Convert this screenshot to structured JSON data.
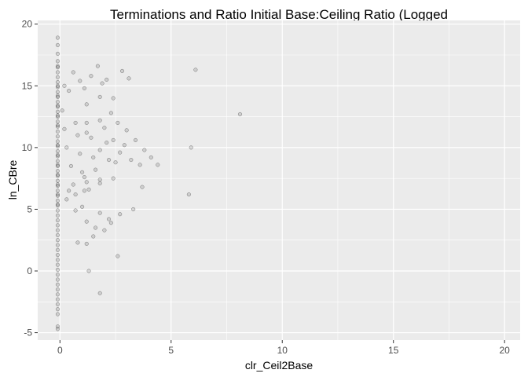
{
  "chart_data": {
    "type": "scatter",
    "title": "Terminations and Ratio Initial Base:Ceiling Ratio (Logged",
    "xlabel": "clr_Ceil2Base",
    "ylabel": "ln_CBre",
    "xlim": [
      -1.0,
      20.7
    ],
    "ylim": [
      -5.6,
      20.3
    ],
    "xticks": [
      0,
      5,
      10,
      15,
      20
    ],
    "xtick_labels": [
      "0",
      "5",
      "10",
      "15",
      "20"
    ],
    "yticks": [
      -5,
      0,
      5,
      10,
      15,
      20
    ],
    "ytick_labels": [
      "-5",
      "0",
      "5",
      "10",
      "15",
      "20"
    ],
    "grid": true,
    "background": "#ebebeb",
    "grid_color": "#ffffff",
    "point_color": "#000000",
    "point_alpha": 0.12,
    "series": [
      {
        "name": "points",
        "x": [
          -0.1,
          -0.1,
          -0.1,
          -0.1,
          -0.1,
          -0.1,
          -0.1,
          -0.1,
          -0.1,
          -0.1,
          -0.1,
          -0.1,
          -0.1,
          -0.1,
          -0.1,
          -0.1,
          -0.1,
          -0.1,
          -0.1,
          -0.1,
          -0.1,
          -0.1,
          -0.1,
          -0.1,
          -0.1,
          -0.1,
          -0.1,
          -0.1,
          -0.1,
          -0.1,
          -0.1,
          -0.1,
          -0.1,
          -0.1,
          -0.1,
          -0.1,
          -0.1,
          -0.1,
          -0.1,
          -0.1,
          -0.1,
          -0.1,
          -0.1,
          -0.1,
          -0.1,
          -0.1,
          -0.1,
          -0.1,
          -0.1,
          -0.1,
          -0.1,
          -0.1,
          -0.1,
          -0.1,
          -0.1,
          -0.1,
          -0.1,
          -0.1,
          -0.1,
          -0.1,
          -0.1,
          -0.1,
          -0.1,
          -0.1,
          -0.1,
          -0.1,
          -0.1,
          -0.1,
          -0.1,
          -0.1,
          0.1,
          0.2,
          0.3,
          0.5,
          0.6,
          0.7,
          0.8,
          0.9,
          1.0,
          1.1,
          1.2,
          1.2,
          1.2,
          1.2,
          1.3,
          1.4,
          1.5,
          1.6,
          1.8,
          1.8,
          1.8,
          1.8,
          2.0,
          2.1,
          2.2,
          2.3,
          2.4,
          2.5,
          2.6,
          2.7,
          2.9,
          3.0,
          3.2,
          3.4,
          3.6,
          3.8,
          4.1,
          4.4,
          0.2,
          0.4,
          0.6,
          0.9,
          1.1,
          1.4,
          1.7,
          1.9,
          2.1,
          2.4,
          2.8,
          3.1,
          0.3,
          0.7,
          1.0,
          1.2,
          1.6,
          1.8,
          2.3,
          2.7,
          3.3,
          0.8,
          1.2,
          1.5,
          2.0,
          2.6,
          0.4,
          1.3,
          1.8,
          2.2,
          0.7,
          1.1,
          1.8,
          2.4,
          3.7,
          5.8,
          6.1,
          8.1,
          5.9
        ],
        "y": [
          18.9,
          18.3,
          17.6,
          17.0,
          16.5,
          16.1,
          15.7,
          15.3,
          14.9,
          14.5,
          14.1,
          13.7,
          13.3,
          12.9,
          12.5,
          12.1,
          11.7,
          11.3,
          10.9,
          10.5,
          10.1,
          9.7,
          9.3,
          8.9,
          8.5,
          8.1,
          7.7,
          7.3,
          6.9,
          6.5,
          6.1,
          5.7,
          5.3,
          4.9,
          4.5,
          4.1,
          3.7,
          3.3,
          2.9,
          2.5,
          2.1,
          1.7,
          1.3,
          0.9,
          0.5,
          0.1,
          -0.3,
          -0.7,
          -1.1,
          -1.5,
          -1.9,
          -2.3,
          -2.7,
          -3.1,
          -3.5,
          -4.5,
          -4.7,
          16.6,
          15.0,
          13.4,
          11.8,
          10.2,
          8.6,
          7.0,
          5.4,
          14.2,
          12.6,
          9.4,
          7.8,
          6.2,
          13.0,
          11.5,
          10.0,
          8.5,
          7.0,
          12.0,
          11.0,
          9.5,
          8.0,
          6.5,
          13.5,
          12.0,
          11.2,
          7.2,
          6.6,
          10.8,
          9.2,
          8.2,
          14.1,
          12.2,
          9.8,
          7.4,
          11.6,
          10.4,
          9.0,
          12.8,
          10.6,
          8.8,
          12.0,
          9.6,
          10.2,
          11.4,
          9.0,
          10.6,
          8.6,
          9.8,
          9.2,
          8.6,
          15.0,
          14.6,
          16.1,
          15.4,
          14.8,
          15.8,
          16.6,
          15.2,
          15.5,
          14.0,
          16.2,
          15.6,
          5.8,
          4.9,
          5.2,
          4.0,
          3.5,
          4.7,
          3.9,
          4.6,
          5.0,
          2.3,
          2.2,
          2.8,
          3.3,
          1.2,
          6.5,
          0.0,
          -1.8,
          4.2,
          6.2,
          7.6,
          7.1,
          7.5,
          6.8,
          6.2,
          16.3,
          12.7,
          10.0
        ]
      }
    ]
  }
}
